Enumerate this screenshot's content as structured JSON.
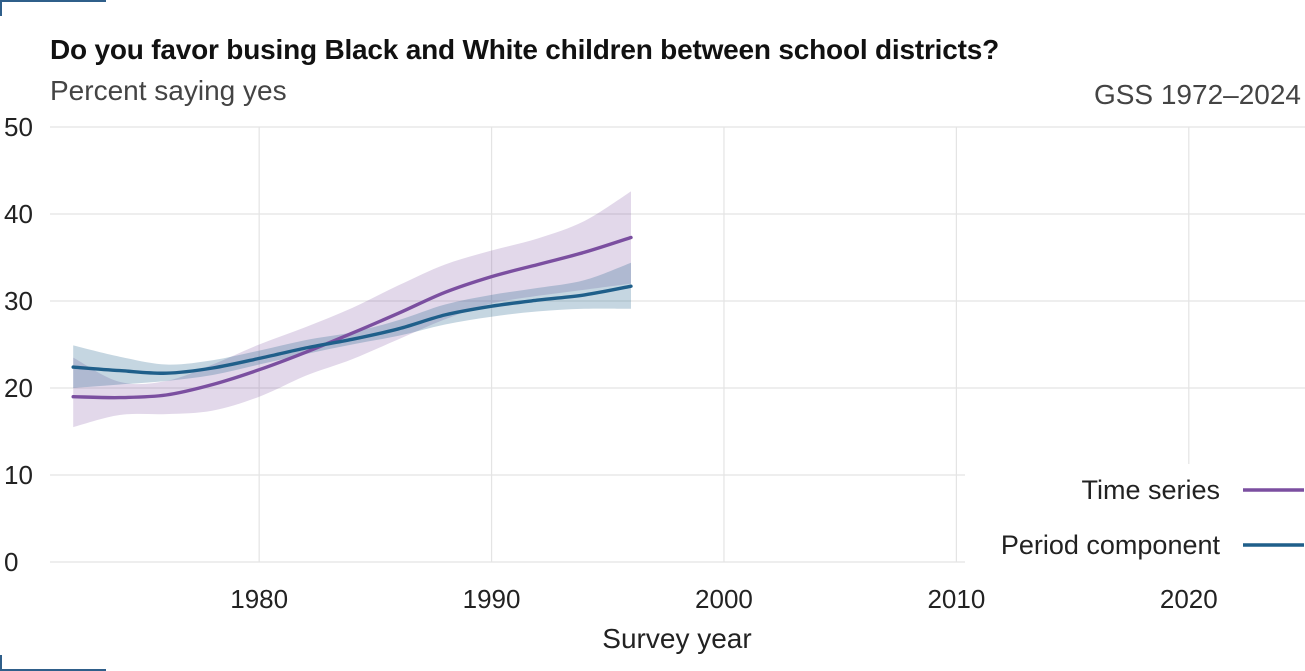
{
  "header": {
    "title": "Do you favor busing Black and White children between school districts?",
    "subtitle": "Percent saying yes",
    "source": "GSS 1972–2024"
  },
  "chart_data": {
    "type": "line",
    "title": "Do you favor busing Black and White children between school districts?",
    "subtitle": "Percent saying yes",
    "xlabel": "Survey year",
    "ylabel": "",
    "xlim": [
      1971,
      2025
    ],
    "ylim": [
      0,
      50
    ],
    "x_ticks": [
      1980,
      1990,
      2000,
      2010,
      2020
    ],
    "y_ticks": [
      0,
      10,
      20,
      30,
      40,
      50
    ],
    "grid": true,
    "legend_position": "bottom-right",
    "colors": {
      "time_series": "#7b4fa0",
      "period_component": "#1f5f8a"
    },
    "series": [
      {
        "name": "Time series",
        "color": "#7b4fa0",
        "x": [
          1972,
          1974,
          1976,
          1978,
          1980,
          1982,
          1984,
          1986,
          1988,
          1990,
          1992,
          1994,
          1996
        ],
        "y": [
          19.0,
          18.9,
          19.2,
          20.4,
          22.1,
          24.1,
          26.3,
          28.6,
          31.0,
          32.8,
          34.2,
          35.6,
          37.3
        ],
        "lower": [
          15.5,
          16.9,
          17.0,
          17.4,
          19.0,
          21.4,
          23.3,
          25.6,
          27.9,
          29.7,
          30.6,
          31.3,
          32.0
        ],
        "upper": [
          23.5,
          20.7,
          20.8,
          22.7,
          25.0,
          27.0,
          29.2,
          31.8,
          34.2,
          35.8,
          37.2,
          39.2,
          42.6
        ]
      },
      {
        "name": "Period component",
        "color": "#1f5f8a",
        "x": [
          1972,
          1974,
          1976,
          1978,
          1980,
          1982,
          1984,
          1986,
          1988,
          1990,
          1992,
          1994,
          1996
        ],
        "y": [
          22.4,
          22.0,
          21.7,
          22.3,
          23.4,
          24.6,
          25.6,
          26.8,
          28.4,
          29.4,
          30.1,
          30.7,
          31.7
        ],
        "lower": [
          20.0,
          20.4,
          20.8,
          21.5,
          22.7,
          23.9,
          25.0,
          26.0,
          27.3,
          28.2,
          28.8,
          29.1,
          29.1
        ],
        "upper": [
          24.9,
          23.6,
          22.7,
          23.2,
          24.3,
          25.5,
          26.4,
          27.8,
          29.6,
          30.7,
          31.5,
          32.4,
          34.4
        ]
      }
    ]
  }
}
